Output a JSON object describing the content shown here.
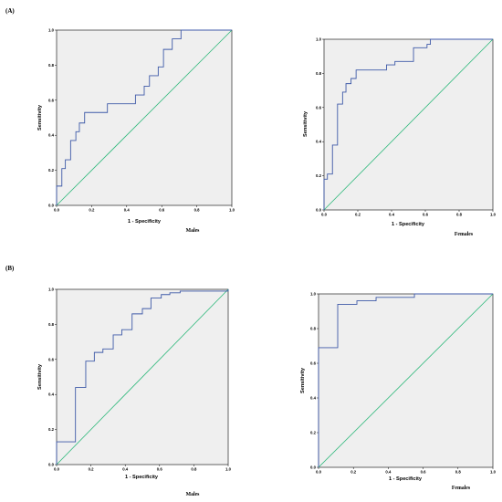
{
  "panels": [
    {
      "label": "(A)"
    },
    {
      "label": "(B)"
    }
  ],
  "colors": {
    "roc_curve": "#3f5aa8",
    "reference_line": "#2db87a",
    "plot_background": "#efefef"
  },
  "chart_data": [
    {
      "type": "line",
      "panel": "(A)",
      "group_label": "Males",
      "xlabel": "1 - Specificity",
      "ylabel": "Sensitivity",
      "xlim": [
        0,
        1
      ],
      "ylim": [
        0,
        1
      ],
      "xticks": [
        "0.0",
        "0.2",
        "0.4",
        "0.6",
        "0.8",
        "1.0"
      ],
      "yticks": [
        "0.0",
        "0.2",
        "0.4",
        "0.6",
        "0.8",
        "1.0"
      ],
      "grid": false,
      "reference_diagonal": true,
      "x": [
        0.0,
        0.0,
        0.03,
        0.03,
        0.05,
        0.05,
        0.08,
        0.08,
        0.11,
        0.11,
        0.13,
        0.13,
        0.16,
        0.16,
        0.29,
        0.29,
        0.45,
        0.45,
        0.5,
        0.5,
        0.53,
        0.53,
        0.58,
        0.58,
        0.61,
        0.61,
        0.66,
        0.66,
        0.71,
        0.71,
        1.0
      ],
      "y": [
        0.0,
        0.11,
        0.11,
        0.21,
        0.21,
        0.26,
        0.26,
        0.37,
        0.37,
        0.42,
        0.42,
        0.47,
        0.47,
        0.53,
        0.53,
        0.58,
        0.58,
        0.63,
        0.63,
        0.68,
        0.68,
        0.74,
        0.74,
        0.79,
        0.79,
        0.89,
        0.89,
        0.95,
        0.95,
        1.0,
        1.0
      ]
    },
    {
      "type": "line",
      "panel": "(A)",
      "group_label": "Females",
      "xlabel": "1 - Specificity",
      "ylabel": "Sensitivity",
      "xlim": [
        0,
        1
      ],
      "ylim": [
        0,
        1
      ],
      "xticks": [
        "0.0",
        "0.2",
        "0.4",
        "0.6",
        "0.8",
        "1.0"
      ],
      "yticks": [
        "0.0",
        "0.2",
        "0.4",
        "0.6",
        "0.8",
        "1.0"
      ],
      "grid": false,
      "reference_diagonal": true,
      "x": [
        0.0,
        0.0,
        0.02,
        0.02,
        0.05,
        0.05,
        0.08,
        0.08,
        0.11,
        0.11,
        0.13,
        0.13,
        0.16,
        0.16,
        0.19,
        0.19,
        0.37,
        0.37,
        0.42,
        0.42,
        0.45,
        0.45,
        0.53,
        0.53,
        0.61,
        0.61,
        0.63,
        0.63,
        1.0
      ],
      "y": [
        0.0,
        0.18,
        0.18,
        0.21,
        0.21,
        0.38,
        0.38,
        0.62,
        0.62,
        0.69,
        0.69,
        0.74,
        0.74,
        0.77,
        0.77,
        0.82,
        0.82,
        0.85,
        0.85,
        0.87,
        0.87,
        0.87,
        0.87,
        0.95,
        0.95,
        0.97,
        0.97,
        1.0,
        1.0
      ]
    },
    {
      "type": "line",
      "panel": "(B)",
      "group_label": "Males",
      "xlabel": "1 - Specificity",
      "ylabel": "Sensitivity",
      "xlim": [
        0,
        1
      ],
      "ylim": [
        0,
        1
      ],
      "xticks": [
        "0.0",
        "0.2",
        "0.4",
        "0.6",
        "0.8",
        "1.0"
      ],
      "yticks": [
        "0.0",
        "0.2",
        "0.4",
        "0.6",
        "0.8",
        "1.0"
      ],
      "grid": false,
      "reference_diagonal": true,
      "x": [
        0.0,
        0.0,
        0.11,
        0.11,
        0.17,
        0.17,
        0.22,
        0.22,
        0.27,
        0.27,
        0.33,
        0.33,
        0.38,
        0.38,
        0.44,
        0.44,
        0.5,
        0.5,
        0.55,
        0.55,
        0.61,
        0.61,
        0.66,
        0.66,
        0.72,
        0.72,
        1.0,
        1.0
      ],
      "y": [
        0.0,
        0.13,
        0.13,
        0.44,
        0.44,
        0.59,
        0.59,
        0.64,
        0.64,
        0.66,
        0.66,
        0.74,
        0.74,
        0.77,
        0.77,
        0.86,
        0.86,
        0.89,
        0.89,
        0.95,
        0.95,
        0.97,
        0.97,
        0.98,
        0.98,
        0.99,
        0.99,
        1.0
      ]
    },
    {
      "type": "line",
      "panel": "(B)",
      "group_label": "Females",
      "xlabel": "1 - Specificity",
      "ylabel": "Sensitivity",
      "xlim": [
        0,
        1
      ],
      "ylim": [
        0,
        1
      ],
      "xticks": [
        "0.0",
        "0.2",
        "0.4",
        "0.6",
        "0.8",
        "1.0"
      ],
      "yticks": [
        "0.0",
        "0.2",
        "0.4",
        "0.6",
        "0.8",
        "1.0"
      ],
      "grid": false,
      "reference_diagonal": true,
      "x": [
        0.0,
        0.0,
        0.11,
        0.11,
        0.22,
        0.22,
        0.33,
        0.33,
        0.55,
        0.55,
        1.0
      ],
      "y": [
        0.0,
        0.69,
        0.69,
        0.94,
        0.94,
        0.96,
        0.96,
        0.98,
        0.98,
        1.0,
        1.0
      ]
    }
  ]
}
